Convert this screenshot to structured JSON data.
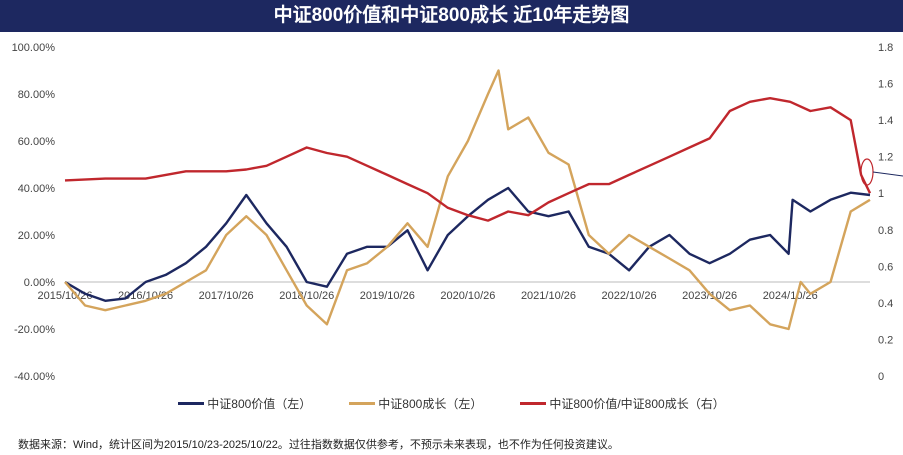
{
  "chart_data": {
    "type": "line",
    "title": "中证800价值和中证800成长 近10年走势图",
    "y_left": {
      "ticks": [
        "100.00%",
        "80.00%",
        "60.00%",
        "40.00%",
        "20.00%",
        "0.00%",
        "-20.00%",
        "-40.00%"
      ],
      "range": [
        -40,
        100
      ]
    },
    "y_right": {
      "ticks": [
        "1.8",
        "1.6",
        "1.4",
        "1.2",
        "1",
        "0.8",
        "0.6",
        "0.4",
        "0.2",
        "0"
      ],
      "range": [
        0,
        1.8
      ]
    },
    "x_ticks": [
      "2015/10/26",
      "2016/10/26",
      "2017/10/26",
      "2018/10/26",
      "2019/10/26",
      "2020/10/26",
      "2021/10/26",
      "2022/10/26",
      "2023/10/26",
      "2024/10/26"
    ],
    "x_range": [
      2015.82,
      2025.81
    ],
    "series": [
      {
        "name": "中证800价值（左）",
        "axis": "left",
        "color": "#1d2860",
        "x": [
          2015.82,
          2016.07,
          2016.32,
          2016.57,
          2016.82,
          2017.07,
          2017.32,
          2017.57,
          2017.82,
          2018.07,
          2018.32,
          2018.57,
          2018.82,
          2019.07,
          2019.32,
          2019.57,
          2019.82,
          2020.07,
          2020.32,
          2020.57,
          2020.82,
          2021.07,
          2021.32,
          2021.57,
          2021.82,
          2022.07,
          2022.32,
          2022.57,
          2022.82,
          2023.07,
          2023.32,
          2023.57,
          2023.82,
          2024.07,
          2024.32,
          2024.57,
          2024.8,
          2024.85,
          2025.07,
          2025.32,
          2025.57,
          2025.81
        ],
        "values": [
          0,
          -5,
          -8,
          -7,
          0,
          3,
          8,
          15,
          25,
          37,
          25,
          15,
          0,
          -2,
          12,
          15,
          15,
          22,
          5,
          20,
          28,
          35,
          40,
          30,
          28,
          30,
          15,
          12,
          5,
          15,
          20,
          12,
          8,
          12,
          18,
          20,
          12,
          35,
          30,
          35,
          38,
          37
        ]
      },
      {
        "name": "中证800成长（左）",
        "axis": "left",
        "color": "#d4a45c",
        "x": [
          2015.82,
          2016.07,
          2016.32,
          2016.57,
          2016.82,
          2017.07,
          2017.32,
          2017.57,
          2017.82,
          2018.07,
          2018.32,
          2018.57,
          2018.82,
          2019.07,
          2019.32,
          2019.57,
          2019.82,
          2020.07,
          2020.32,
          2020.57,
          2020.82,
          2021.07,
          2021.2,
          2021.32,
          2021.57,
          2021.82,
          2022.07,
          2022.32,
          2022.57,
          2022.82,
          2023.07,
          2023.32,
          2023.57,
          2023.82,
          2024.07,
          2024.32,
          2024.57,
          2024.8,
          2024.95,
          2025.07,
          2025.32,
          2025.57,
          2025.81
        ],
        "values": [
          0,
          -10,
          -12,
          -10,
          -8,
          -5,
          0,
          5,
          20,
          28,
          20,
          5,
          -10,
          -18,
          5,
          8,
          15,
          25,
          15,
          45,
          60,
          80,
          90,
          65,
          70,
          55,
          50,
          20,
          12,
          20,
          15,
          10,
          5,
          -5,
          -12,
          -10,
          -18,
          -20,
          0,
          -5,
          0,
          30,
          35
        ]
      },
      {
        "name": "中证800价值/中证800成长（右）",
        "axis": "right",
        "color": "#c0272d",
        "x": [
          2015.82,
          2016.32,
          2016.82,
          2017.32,
          2017.82,
          2018.07,
          2018.32,
          2018.57,
          2018.82,
          2019.07,
          2019.32,
          2019.57,
          2019.82,
          2020.07,
          2020.32,
          2020.57,
          2020.82,
          2021.07,
          2021.32,
          2021.57,
          2021.82,
          2022.07,
          2022.32,
          2022.57,
          2022.82,
          2023.07,
          2023.32,
          2023.57,
          2023.82,
          2024.07,
          2024.32,
          2024.57,
          2024.82,
          2025.07,
          2025.32,
          2025.57,
          2025.7,
          2025.81
        ],
        "values": [
          1.07,
          1.08,
          1.08,
          1.12,
          1.12,
          1.13,
          1.15,
          1.2,
          1.25,
          1.22,
          1.2,
          1.15,
          1.1,
          1.05,
          1.0,
          0.92,
          0.88,
          0.85,
          0.9,
          0.88,
          0.95,
          1.0,
          1.05,
          1.05,
          1.1,
          1.15,
          1.2,
          1.25,
          1.3,
          1.45,
          1.5,
          1.52,
          1.5,
          1.45,
          1.47,
          1.4,
          1.1,
          1.0
        ]
      }
    ]
  },
  "footer": "数据来源：Wind，统计区间为2015/10/23-2025/10/22。过往指数数据仅供参考，不预示未来表现，也不作为任何投资建议。"
}
